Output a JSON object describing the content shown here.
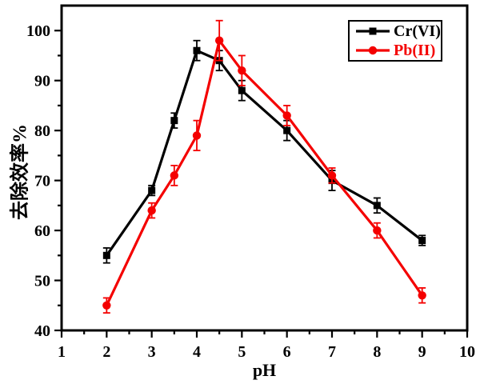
{
  "figure": {
    "background": "#ffffff"
  },
  "chart_data": {
    "type": "line",
    "title": "",
    "xlabel": "pH",
    "ylabel": "去除效率%",
    "x": [
      2,
      3,
      3.5,
      4,
      4.5,
      5,
      6,
      7,
      8,
      9
    ],
    "series": [
      {
        "name": "Cr(VI)",
        "color": "#000000",
        "marker": "square",
        "values": [
          55,
          68,
          82,
          96,
          94,
          88,
          80,
          70,
          65,
          58
        ],
        "errors": [
          1.5,
          1,
          1.5,
          2,
          2,
          2,
          2,
          2,
          1.5,
          1
        ]
      },
      {
        "name": "Pb(II)",
        "color": "#f40000",
        "marker": "circle",
        "values": [
          45,
          64,
          71,
          79,
          98,
          92,
          83,
          71,
          60,
          47
        ],
        "errors": [
          1.5,
          1.5,
          2,
          3,
          4,
          3,
          2,
          1.5,
          1.5,
          1.5
        ]
      }
    ],
    "xlim": [
      1,
      10
    ],
    "ylim": [
      40,
      105
    ],
    "x_major_ticks": [
      1,
      2,
      3,
      4,
      5,
      6,
      7,
      8,
      9,
      10
    ],
    "x_minor_ticks": [
      1.5,
      2.5,
      3.5,
      4.5,
      5.5,
      6.5,
      7.5,
      8.5,
      9.5
    ],
    "y_major_ticks": [
      40,
      50,
      60,
      70,
      80,
      90,
      100
    ],
    "y_minor_ticks": [
      45,
      55,
      65,
      75,
      85,
      95
    ],
    "grid": false,
    "legend_position": "top-right",
    "axis_color": "#000000",
    "error_bars": true
  }
}
